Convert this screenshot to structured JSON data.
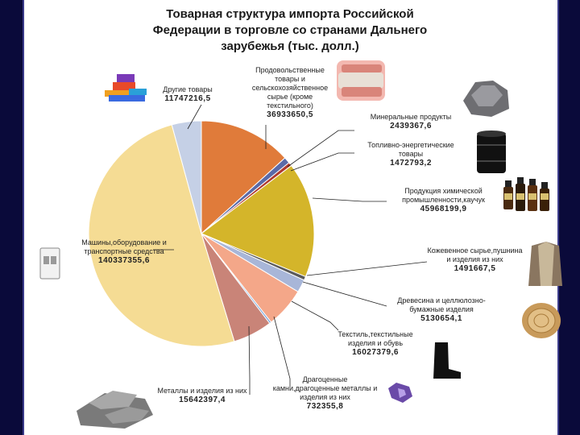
{
  "title": {
    "line1": "Товарная структура импорта Российской",
    "line2": "Федерации в торговле со странами Дальнего",
    "line3": "зарубежья (тыс. долл.)"
  },
  "chart_data": {
    "type": "pie",
    "title": "Товарная структура импорта Российской Федерации в торговле со странами Дальнего зарубежья (тыс. долл.)",
    "slices": [
      {
        "name": "Продовольственные товары и сельскохозяйственное сырье (кроме текстильного)",
        "value_label": "36933650,5",
        "value": 36933650.5,
        "color": "#e07b3a"
      },
      {
        "name": "Минеральные продукты",
        "value_label": "2439367,6",
        "value": 2439367.6,
        "color": "#5a6aa8"
      },
      {
        "name": "Топливно-энергетические товары",
        "value_label": "1472793,2",
        "value": 1472793.2,
        "color": "#b03a2e"
      },
      {
        "name": "Продукция химической промышленности,каучук",
        "value_label": "45968199,9",
        "value": 45968199.9,
        "color": "#d4b52a"
      },
      {
        "name": "Кожевенное сырье,пушнина и изделия из них",
        "value_label": "1491667,5",
        "value": 1491667.5,
        "color": "#5a5a5a"
      },
      {
        "name": "Древесина и целлюлозно-бумажные изделия",
        "value_label": "5130654,1",
        "value": 5130654.1,
        "color": "#a8b6d8"
      },
      {
        "name": "Текстиль,текстильные изделия и обувь",
        "value_label": "16027379,6",
        "value": 16027379.6,
        "color": "#f4a789"
      },
      {
        "name": "Драгоценные камни,драгоценные металлы и изделия из них",
        "value_label": "732355,8",
        "value": 732355.8,
        "color": "#6f9fd8"
      },
      {
        "name": "Металлы и изделия из них",
        "value_label": "15642397,4",
        "value": 15642397.4,
        "color": "#c98478"
      },
      {
        "name": "Машины,оборудование и транспортные средства",
        "value_label": "140337355,6",
        "value": 140337355.6,
        "color": "#f5dc94"
      },
      {
        "name": "Другие товары",
        "value_label": "11747216,5",
        "value": 11747216.5,
        "color": "#c5d0e6"
      }
    ]
  },
  "labels": {
    "food": {
      "name": "Продовольственные товары и сельскохозяйственное сырье (кроме текстильного)",
      "value": "36933650,5"
    },
    "mineral": {
      "name": "Минеральные продукты",
      "value": "2439367,6"
    },
    "fuel": {
      "name": "Топливно-энергетические товары",
      "value": "1472793,2"
    },
    "chem": {
      "name": "Продукция химической промышленности,каучук",
      "value": "45968199,9"
    },
    "leather": {
      "name": "Кожевенное сырье,пушнина и изделия из них",
      "value": "1491667,5"
    },
    "wood": {
      "name": "Древесина и целлюлозно-бумажные изделия",
      "value": "5130654,1"
    },
    "textile": {
      "name": "Текстиль,текстильные изделия и обувь",
      "value": "16027379,6"
    },
    "precious": {
      "name": "Драгоценные камни,драгоценные металлы и изделия из них",
      "value": "732355,8"
    },
    "metals": {
      "name": "Металлы и изделия из них",
      "value": "15642397,4"
    },
    "machinery": {
      "name": "Машины,оборудование и транспортные средства",
      "value": "140337355,6"
    },
    "other": {
      "name": "Другие товары",
      "value": "11747216,5"
    }
  },
  "pictures": {
    "meat": "meat-icon",
    "ore": "ore-icon",
    "barrel": "oil-barrel-icon",
    "bottles": "chemical-bottles-icon",
    "coat": "fur-coat-icon",
    "log": "wood-log-icon",
    "boot": "rubber-boot-icon",
    "gem": "gemstone-icon",
    "ingots": "metal-ingots-icon",
    "breaker": "circuit-breaker-icon",
    "fabric": "fabric-swatches-icon"
  }
}
